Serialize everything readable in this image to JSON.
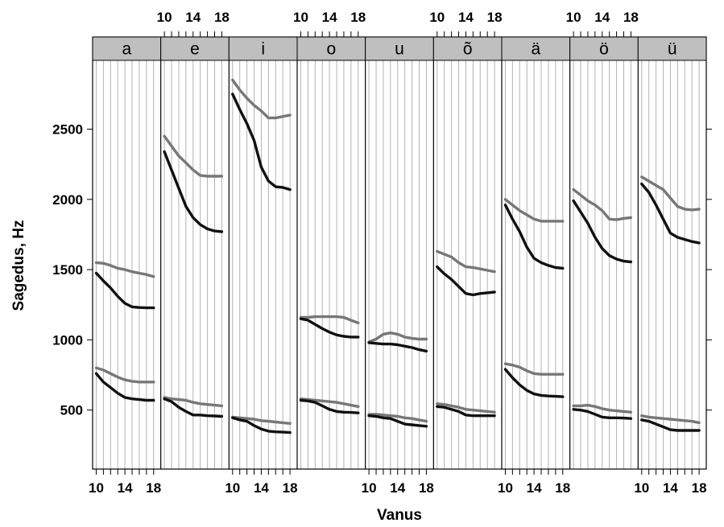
{
  "chart_data": {
    "type": "line",
    "xlabel": "Vanus",
    "ylabel": "Sagedus, Hz",
    "xlim": [
      9.5,
      19
    ],
    "ylim": [
      80,
      2990
    ],
    "x_ticks": [
      10,
      14,
      18
    ],
    "y_ticks": [
      500,
      1000,
      1500,
      2000,
      2500
    ],
    "x_gridlines": [
      10,
      11,
      12,
      13,
      14,
      15,
      16,
      17,
      18
    ],
    "grid": true,
    "x": [
      10,
      11,
      12,
      13,
      14,
      15,
      16,
      17,
      18
    ],
    "colors": {
      "dark": "#111111",
      "gray": "#777777",
      "strip": "#bfbfbf",
      "grid": "#b3b3b3"
    },
    "panels": [
      {
        "label": "a",
        "series": [
          {
            "values": [
              1550,
              1545,
              1530,
              1510,
              1500,
              1485,
              1475,
              1465,
              1450
            ],
            "color": "#777777"
          },
          {
            "values": [
              1475,
              1420,
              1370,
              1310,
              1260,
              1235,
              1230,
              1228,
              1228
            ],
            "color": "#111111"
          },
          {
            "values": [
              800,
              785,
              760,
              735,
              715,
              705,
              700,
              700,
              700
            ],
            "color": "#777777"
          },
          {
            "values": [
              760,
              700,
              660,
              620,
              590,
              580,
              575,
              570,
              570
            ],
            "color": "#111111"
          }
        ]
      },
      {
        "label": "e",
        "series": [
          {
            "values": [
              2450,
              2380,
              2310,
              2260,
              2210,
              2170,
              2165,
              2165,
              2165
            ],
            "color": "#777777"
          },
          {
            "values": [
              2340,
              2210,
              2080,
              1950,
              1870,
              1820,
              1790,
              1775,
              1770
            ],
            "color": "#111111"
          },
          {
            "values": [
              590,
              580,
              575,
              570,
              555,
              545,
              540,
              535,
              530
            ],
            "color": "#777777"
          },
          {
            "values": [
              580,
              560,
              520,
              490,
              465,
              465,
              460,
              458,
              455
            ],
            "color": "#111111"
          }
        ]
      },
      {
        "label": "i",
        "series": [
          {
            "values": [
              2850,
              2780,
              2720,
              2670,
              2630,
              2580,
              2580,
              2590,
              2600
            ],
            "color": "#777777"
          },
          {
            "values": [
              2750,
              2640,
              2540,
              2420,
              2230,
              2130,
              2090,
              2085,
              2070
            ],
            "color": "#111111"
          },
          {
            "values": [
              450,
              445,
              440,
              435,
              425,
              420,
              415,
              410,
              405
            ],
            "color": "#777777"
          },
          {
            "values": [
              445,
              430,
              420,
              390,
              365,
              350,
              345,
              343,
              340
            ],
            "color": "#111111"
          }
        ]
      },
      {
        "label": "o",
        "series": [
          {
            "values": [
              1160,
              1160,
              1165,
              1165,
              1165,
              1165,
              1160,
              1140,
              1120
            ],
            "color": "#777777"
          },
          {
            "values": [
              1150,
              1140,
              1110,
              1080,
              1055,
              1035,
              1025,
              1020,
              1020
            ],
            "color": "#111111"
          },
          {
            "values": [
              580,
              575,
              570,
              565,
              560,
              555,
              545,
              535,
              525
            ],
            "color": "#777777"
          },
          {
            "values": [
              570,
              565,
              555,
              530,
              505,
              490,
              485,
              483,
              480
            ],
            "color": "#111111"
          }
        ]
      },
      {
        "label": "u",
        "series": [
          {
            "values": [
              985,
              1005,
              1040,
              1050,
              1040,
              1020,
              1010,
              1005,
              1005
            ],
            "color": "#777777"
          },
          {
            "values": [
              980,
              975,
              970,
              970,
              965,
              955,
              945,
              930,
              920
            ],
            "color": "#111111"
          },
          {
            "values": [
              470,
              470,
              465,
              460,
              455,
              445,
              440,
              430,
              420
            ],
            "color": "#777777"
          },
          {
            "values": [
              460,
              455,
              445,
              440,
              420,
              400,
              395,
              390,
              385
            ],
            "color": "#111111"
          }
        ]
      },
      {
        "label": "õ",
        "series": [
          {
            "values": [
              1630,
              1610,
              1590,
              1550,
              1520,
              1515,
              1505,
              1495,
              1485
            ],
            "color": "#777777"
          },
          {
            "values": [
              1520,
              1470,
              1430,
              1380,
              1330,
              1320,
              1330,
              1335,
              1340
            ],
            "color": "#111111"
          },
          {
            "values": [
              545,
              540,
              530,
              520,
              505,
              500,
              495,
              490,
              485
            ],
            "color": "#777777"
          },
          {
            "values": [
              525,
              520,
              505,
              490,
              465,
              460,
              460,
              460,
              460
            ],
            "color": "#111111"
          }
        ]
      },
      {
        "label": "ä",
        "series": [
          {
            "values": [
              2000,
              1960,
              1920,
              1890,
              1860,
              1845,
              1845,
              1845,
              1845
            ],
            "color": "#777777"
          },
          {
            "values": [
              1960,
              1860,
              1770,
              1660,
              1580,
              1550,
              1530,
              1515,
              1510
            ],
            "color": "#111111"
          },
          {
            "values": [
              830,
              820,
              805,
              780,
              760,
              755,
              755,
              755,
              755
            ],
            "color": "#777777"
          },
          {
            "values": [
              790,
              730,
              680,
              640,
              615,
              605,
              600,
              598,
              595
            ],
            "color": "#111111"
          }
        ]
      },
      {
        "label": "ö",
        "series": [
          {
            "values": [
              2070,
              2030,
              1990,
              1960,
              1920,
              1860,
              1855,
              1865,
              1870
            ],
            "color": "#777777"
          },
          {
            "values": [
              1990,
              1910,
              1830,
              1730,
              1650,
              1600,
              1575,
              1560,
              1555
            ],
            "color": "#111111"
          },
          {
            "values": [
              530,
              530,
              535,
              525,
              510,
              500,
              495,
              490,
              485
            ],
            "color": "#777777"
          },
          {
            "values": [
              505,
              500,
              490,
              470,
              450,
              445,
              445,
              443,
              440
            ],
            "color": "#111111"
          }
        ]
      },
      {
        "label": "ü",
        "series": [
          {
            "values": [
              2160,
              2130,
              2100,
              2070,
              2010,
              1950,
              1930,
              1925,
              1930
            ],
            "color": "#777777"
          },
          {
            "values": [
              2110,
              2050,
              1960,
              1860,
              1760,
              1730,
              1715,
              1700,
              1690
            ],
            "color": "#111111"
          },
          {
            "values": [
              460,
              450,
              445,
              440,
              435,
              430,
              425,
              420,
              410
            ],
            "color": "#777777"
          },
          {
            "values": [
              430,
              420,
              400,
              380,
              360,
              355,
              355,
              355,
              355
            ],
            "color": "#111111"
          }
        ]
      }
    ]
  }
}
